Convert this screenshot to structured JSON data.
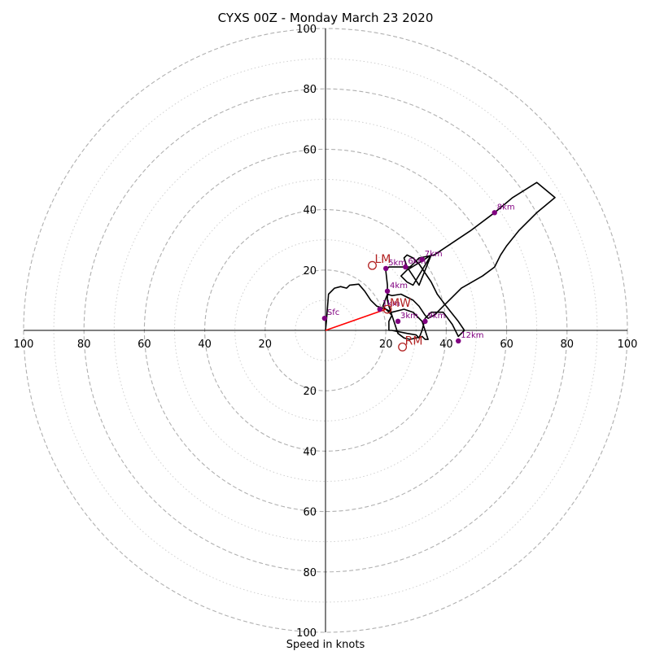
{
  "chart_data": {
    "type": "hodograph",
    "title": "CYXS 00Z - Monday March 23 2020",
    "xlabel": "Speed in knots",
    "range": [
      -100,
      100
    ],
    "ring_labels": [
      "100",
      "80",
      "60",
      "40",
      "20",
      "20",
      "40",
      "60",
      "80",
      "100"
    ],
    "rings_dashed": [
      20,
      40,
      60,
      80,
      100
    ],
    "rings_dotted": [
      10,
      30,
      50,
      70,
      90
    ],
    "trace": [
      [
        0,
        0
      ],
      [
        0.3,
        3
      ],
      [
        1,
        12
      ],
      [
        3,
        14
      ],
      [
        5,
        14.5
      ],
      [
        7,
        14
      ],
      [
        8,
        15
      ],
      [
        11,
        15.3
      ],
      [
        13,
        13
      ],
      [
        15,
        10
      ],
      [
        17,
        8
      ],
      [
        20,
        7
      ],
      [
        22,
        5
      ],
      [
        24,
        -1
      ],
      [
        26,
        -2.5
      ],
      [
        28,
        -3
      ],
      [
        30,
        -2.5
      ],
      [
        32,
        -2
      ],
      [
        33,
        -3
      ],
      [
        34,
        -3
      ],
      [
        33,
        0
      ],
      [
        32,
        3
      ],
      [
        29,
        6
      ],
      [
        26,
        7
      ],
      [
        22,
        6
      ],
      [
        20,
        7
      ],
      [
        19,
        8
      ],
      [
        20.5,
        12
      ],
      [
        22,
        11.5
      ],
      [
        25,
        12
      ],
      [
        29,
        10
      ],
      [
        31,
        8
      ],
      [
        33,
        5
      ],
      [
        34,
        4
      ],
      [
        36,
        5
      ],
      [
        40,
        9
      ],
      [
        45,
        14
      ],
      [
        52,
        18
      ],
      [
        56,
        21
      ],
      [
        58,
        25
      ],
      [
        60,
        28
      ],
      [
        64,
        33
      ],
      [
        70,
        39
      ],
      [
        76,
        44
      ],
      [
        70,
        49
      ],
      [
        62,
        44
      ],
      [
        56,
        39
      ],
      [
        48,
        33
      ],
      [
        42,
        29
      ],
      [
        36,
        25
      ],
      [
        31,
        24
      ],
      [
        28,
        21
      ],
      [
        25,
        21
      ],
      [
        21,
        21
      ],
      [
        20,
        20
      ],
      [
        20,
        19.5
      ],
      [
        20.5,
        15
      ],
      [
        20.5,
        10
      ],
      [
        21,
        8
      ],
      [
        22,
        5
      ],
      [
        21,
        3
      ],
      [
        21,
        2
      ],
      [
        21,
        0
      ],
      [
        22,
        0
      ],
      [
        27,
        -1
      ],
      [
        30,
        -1.5
      ],
      [
        31,
        -2.5
      ],
      [
        32,
        0
      ],
      [
        33,
        4
      ],
      [
        35,
        6
      ],
      [
        39,
        6
      ],
      [
        42,
        2
      ],
      [
        44,
        -2
      ],
      [
        46,
        0
      ],
      [
        44,
        3
      ],
      [
        40,
        8
      ],
      [
        37,
        12
      ],
      [
        35,
        16
      ],
      [
        33,
        19
      ],
      [
        31,
        22
      ],
      [
        29,
        24
      ],
      [
        27,
        25
      ],
      [
        26,
        24
      ],
      [
        27,
        21
      ],
      [
        29,
        18
      ],
      [
        31,
        15
      ],
      [
        35,
        25
      ],
      [
        32,
        23
      ],
      [
        27,
        20
      ],
      [
        25,
        18
      ],
      [
        27,
        16
      ],
      [
        29,
        15
      ],
      [
        35,
        25
      ]
    ],
    "height_points": [
      {
        "label": "Sfc",
        "u": -0.3,
        "v": 4
      },
      {
        "label": "1km",
        "u": 18,
        "v": 7
      },
      {
        "label": "3km",
        "u": 24,
        "v": 3
      },
      {
        "label": "4km",
        "u": 20.5,
        "v": 13
      },
      {
        "label": "5km",
        "u": 20,
        "v": 20.5
      },
      {
        "label": "6km",
        "u": 26.5,
        "v": 21
      },
      {
        "label": "7km",
        "u": 32,
        "v": 23.5
      },
      {
        "label": "8km",
        "u": 56,
        "v": 39
      },
      {
        "label": "9km",
        "u": 33,
        "v": 3
      },
      {
        "label": "12km",
        "u": 44,
        "v": -3.5
      }
    ],
    "motion_points": [
      {
        "label": "LM",
        "u": 15.5,
        "v": 21.5
      },
      {
        "label": "MW",
        "u": 20.5,
        "v": 7
      },
      {
        "label": "RM",
        "u": 25.5,
        "v": -5.5
      }
    ],
    "vector": {
      "from": [
        0,
        0
      ],
      "to": [
        20,
        7
      ]
    },
    "colors": {
      "trace": "#000000",
      "points": "#800080",
      "motion": "#b22222",
      "vector": "#ff0000",
      "ring": "#b0b0b0"
    }
  }
}
